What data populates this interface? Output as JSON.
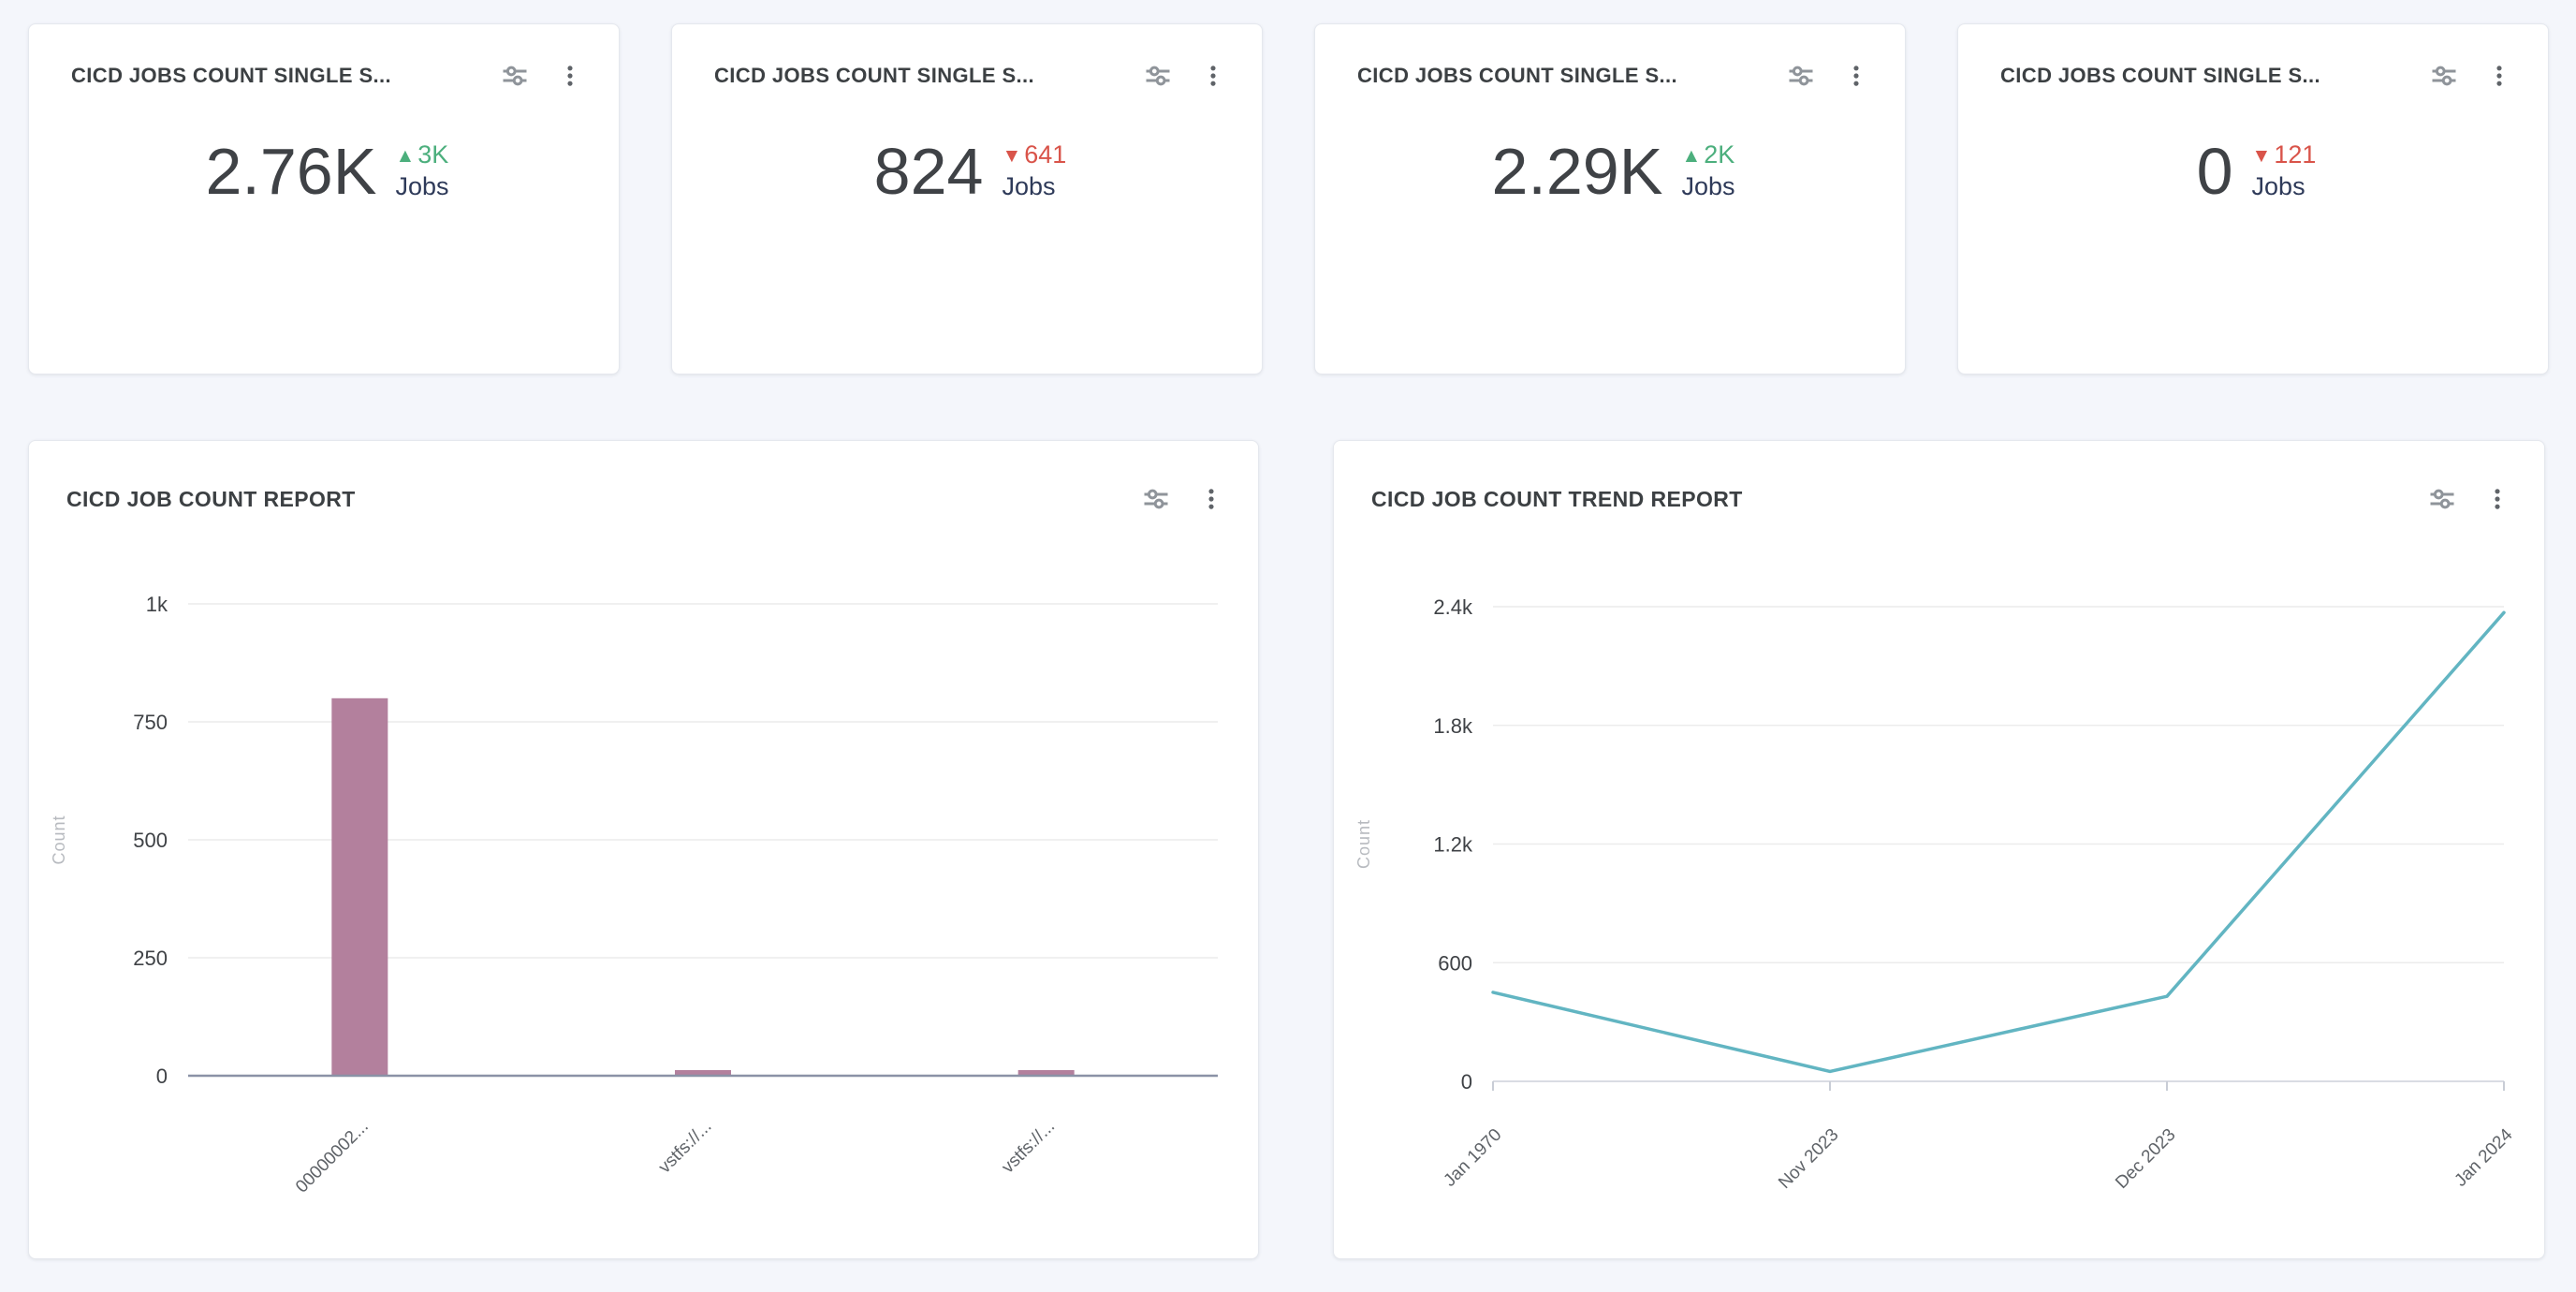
{
  "colors": {
    "background": "#f4f6fb",
    "card_background": "#ffffff",
    "positive": "#4caf7d",
    "negative": "#d9544a",
    "title_text": "#3c4043",
    "value_text": "#3f4246",
    "unit_text": "#2e3a59",
    "bar_fill": "#b3809d",
    "line_stroke": "#62b5c2"
  },
  "icons": {
    "filter": "tune-sliders-icon",
    "menu": "kebab-menu-icon",
    "arrow_up": "▲",
    "arrow_down": "▼"
  },
  "stat_cards": [
    {
      "title": "CICD JOBS COUNT SINGLE S...",
      "value": "2.76K",
      "arrow": "▲",
      "delta": "3K",
      "direction": "up",
      "unit": "Jobs"
    },
    {
      "title": "CICD JOBS COUNT SINGLE S...",
      "value": "824",
      "arrow": "▼",
      "delta": "641",
      "direction": "down",
      "unit": "Jobs"
    },
    {
      "title": "CICD JOBS COUNT SINGLE S...",
      "value": "2.29K",
      "arrow": "▲",
      "delta": "2K",
      "direction": "up",
      "unit": "Jobs"
    },
    {
      "title": "CICD JOBS COUNT SINGLE S...",
      "value": "0",
      "arrow": "▼",
      "delta": "121",
      "direction": "down",
      "unit": "Jobs"
    }
  ],
  "chart_data": [
    {
      "type": "bar",
      "title": "CICD JOB COUNT REPORT",
      "xlabel": "",
      "ylabel": "Count",
      "categories": [
        "00000002...",
        "vstfs://...",
        "vstfs://..."
      ],
      "values": [
        800,
        12,
        12
      ],
      "ylim": [
        0,
        1000
      ],
      "ytick_values": [
        0,
        250,
        500,
        750,
        1000
      ],
      "ytick_labels": [
        "0",
        "250",
        "500",
        "750",
        "1k"
      ],
      "grid": true,
      "legend": false,
      "bar_color": "#b3809d"
    },
    {
      "type": "line",
      "title": "CICD JOB COUNT TREND REPORT",
      "xlabel": "",
      "ylabel": "Count",
      "x": [
        "Jan 1970",
        "Nov 2023",
        "Dec 2023",
        "Jan 2024"
      ],
      "values": [
        450,
        50,
        430,
        2370
      ],
      "ylim": [
        0,
        2400
      ],
      "ytick_values": [
        0,
        600,
        1200,
        1800,
        2400
      ],
      "ytick_labels": [
        "0",
        "600",
        "1.2k",
        "1.8k",
        "2.4k"
      ],
      "grid": true,
      "legend": false,
      "line_color": "#62b5c2"
    }
  ]
}
